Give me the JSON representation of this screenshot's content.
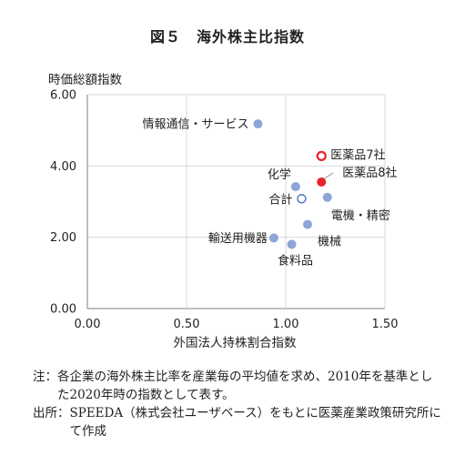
{
  "figure_title": "図５　海外株主比指数",
  "chart_data": {
    "type": "scatter",
    "ylabel": "時価総額指数",
    "xlabel": "外国法人持株割合指数",
    "xlim": [
      0,
      1.5
    ],
    "ylim": [
      0,
      6
    ],
    "x_ticks": [
      "0.00",
      "0.50",
      "1.00",
      "1.50"
    ],
    "y_ticks": [
      "0.00",
      "2.00",
      "4.00",
      "6.00"
    ],
    "grid": true,
    "points": [
      {
        "label": "情報通信・サービス",
        "x": 0.86,
        "y": 5.18,
        "marker": "filled",
        "color": "#8EA5D8"
      },
      {
        "label": "医薬品7社",
        "x": 1.18,
        "y": 4.28,
        "marker": "open",
        "color": "#E8232B"
      },
      {
        "label": "医薬品8社",
        "x": 1.18,
        "y": 3.55,
        "marker": "filled",
        "color": "#E8232B"
      },
      {
        "label": "化学",
        "x": 1.05,
        "y": 3.42,
        "marker": "filled",
        "color": "#8EA5D8"
      },
      {
        "label": "合計",
        "x": 1.08,
        "y": 3.08,
        "marker": "open",
        "color": "#4472C4"
      },
      {
        "label": "電機・精密",
        "x": 1.21,
        "y": 3.12,
        "marker": "filled",
        "color": "#8EA5D8"
      },
      {
        "label": "機械",
        "x": 1.11,
        "y": 2.36,
        "marker": "filled",
        "color": "#8EA5D8"
      },
      {
        "label": "輸送用機器",
        "x": 0.94,
        "y": 1.98,
        "marker": "filled",
        "color": "#8EA5D8"
      },
      {
        "label": "食料品",
        "x": 1.03,
        "y": 1.8,
        "marker": "filled",
        "color": "#8EA5D8"
      }
    ]
  },
  "notes": [
    {
      "label": "注：",
      "text": "各企業の海外株主比率を産業毎の平均値を求め、2010年を基準とした2020年時の指数として表す。"
    },
    {
      "label": "出所：",
      "text": "SPEEDA（株式会社ユーザベース）をもとに医薬産業政策研究所にて作成"
    }
  ]
}
